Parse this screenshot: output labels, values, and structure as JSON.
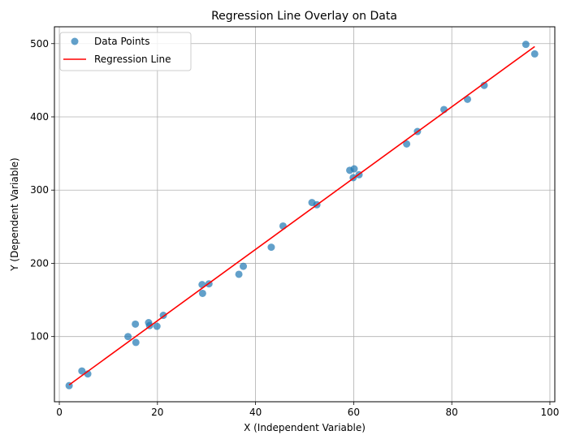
{
  "chart_data": {
    "type": "scatter",
    "title": "Regression Line Overlay on Data",
    "xlabel": "X (Independent Variable)",
    "ylabel": "Y (Dependent Variable)",
    "xlim": [
      -1,
      101
    ],
    "ylim": [
      11,
      523
    ],
    "x_ticks": [
      0,
      20,
      40,
      60,
      80,
      100
    ],
    "y_ticks": [
      100,
      200,
      300,
      400,
      500
    ],
    "grid": true,
    "legend_position": "top-left",
    "series": [
      {
        "name": "Data Points",
        "kind": "scatter",
        "color": "#1f77b4",
        "points": [
          {
            "x": 2.0,
            "y": 33
          },
          {
            "x": 4.6,
            "y": 53
          },
          {
            "x": 5.8,
            "y": 49
          },
          {
            "x": 14.0,
            "y": 100
          },
          {
            "x": 15.5,
            "y": 117
          },
          {
            "x": 15.6,
            "y": 92
          },
          {
            "x": 18.2,
            "y": 119
          },
          {
            "x": 18.4,
            "y": 115
          },
          {
            "x": 19.9,
            "y": 114
          },
          {
            "x": 21.2,
            "y": 129
          },
          {
            "x": 29.1,
            "y": 171
          },
          {
            "x": 29.2,
            "y": 159
          },
          {
            "x": 30.5,
            "y": 172
          },
          {
            "x": 36.6,
            "y": 185
          },
          {
            "x": 37.5,
            "y": 196
          },
          {
            "x": 43.2,
            "y": 222
          },
          {
            "x": 45.6,
            "y": 251
          },
          {
            "x": 51.5,
            "y": 283
          },
          {
            "x": 52.5,
            "y": 280
          },
          {
            "x": 59.2,
            "y": 327
          },
          {
            "x": 59.9,
            "y": 317
          },
          {
            "x": 60.1,
            "y": 329
          },
          {
            "x": 61.1,
            "y": 321
          },
          {
            "x": 70.8,
            "y": 363
          },
          {
            "x": 73.0,
            "y": 380
          },
          {
            "x": 78.4,
            "y": 410
          },
          {
            "x": 83.2,
            "y": 424
          },
          {
            "x": 86.6,
            "y": 443
          },
          {
            "x": 95.1,
            "y": 499
          },
          {
            "x": 96.9,
            "y": 486
          }
        ]
      },
      {
        "name": "Regression Line",
        "kind": "line",
        "color": "#ff0000",
        "points": [
          {
            "x": 2.0,
            "y": 34
          },
          {
            "x": 96.9,
            "y": 496
          }
        ]
      }
    ]
  }
}
